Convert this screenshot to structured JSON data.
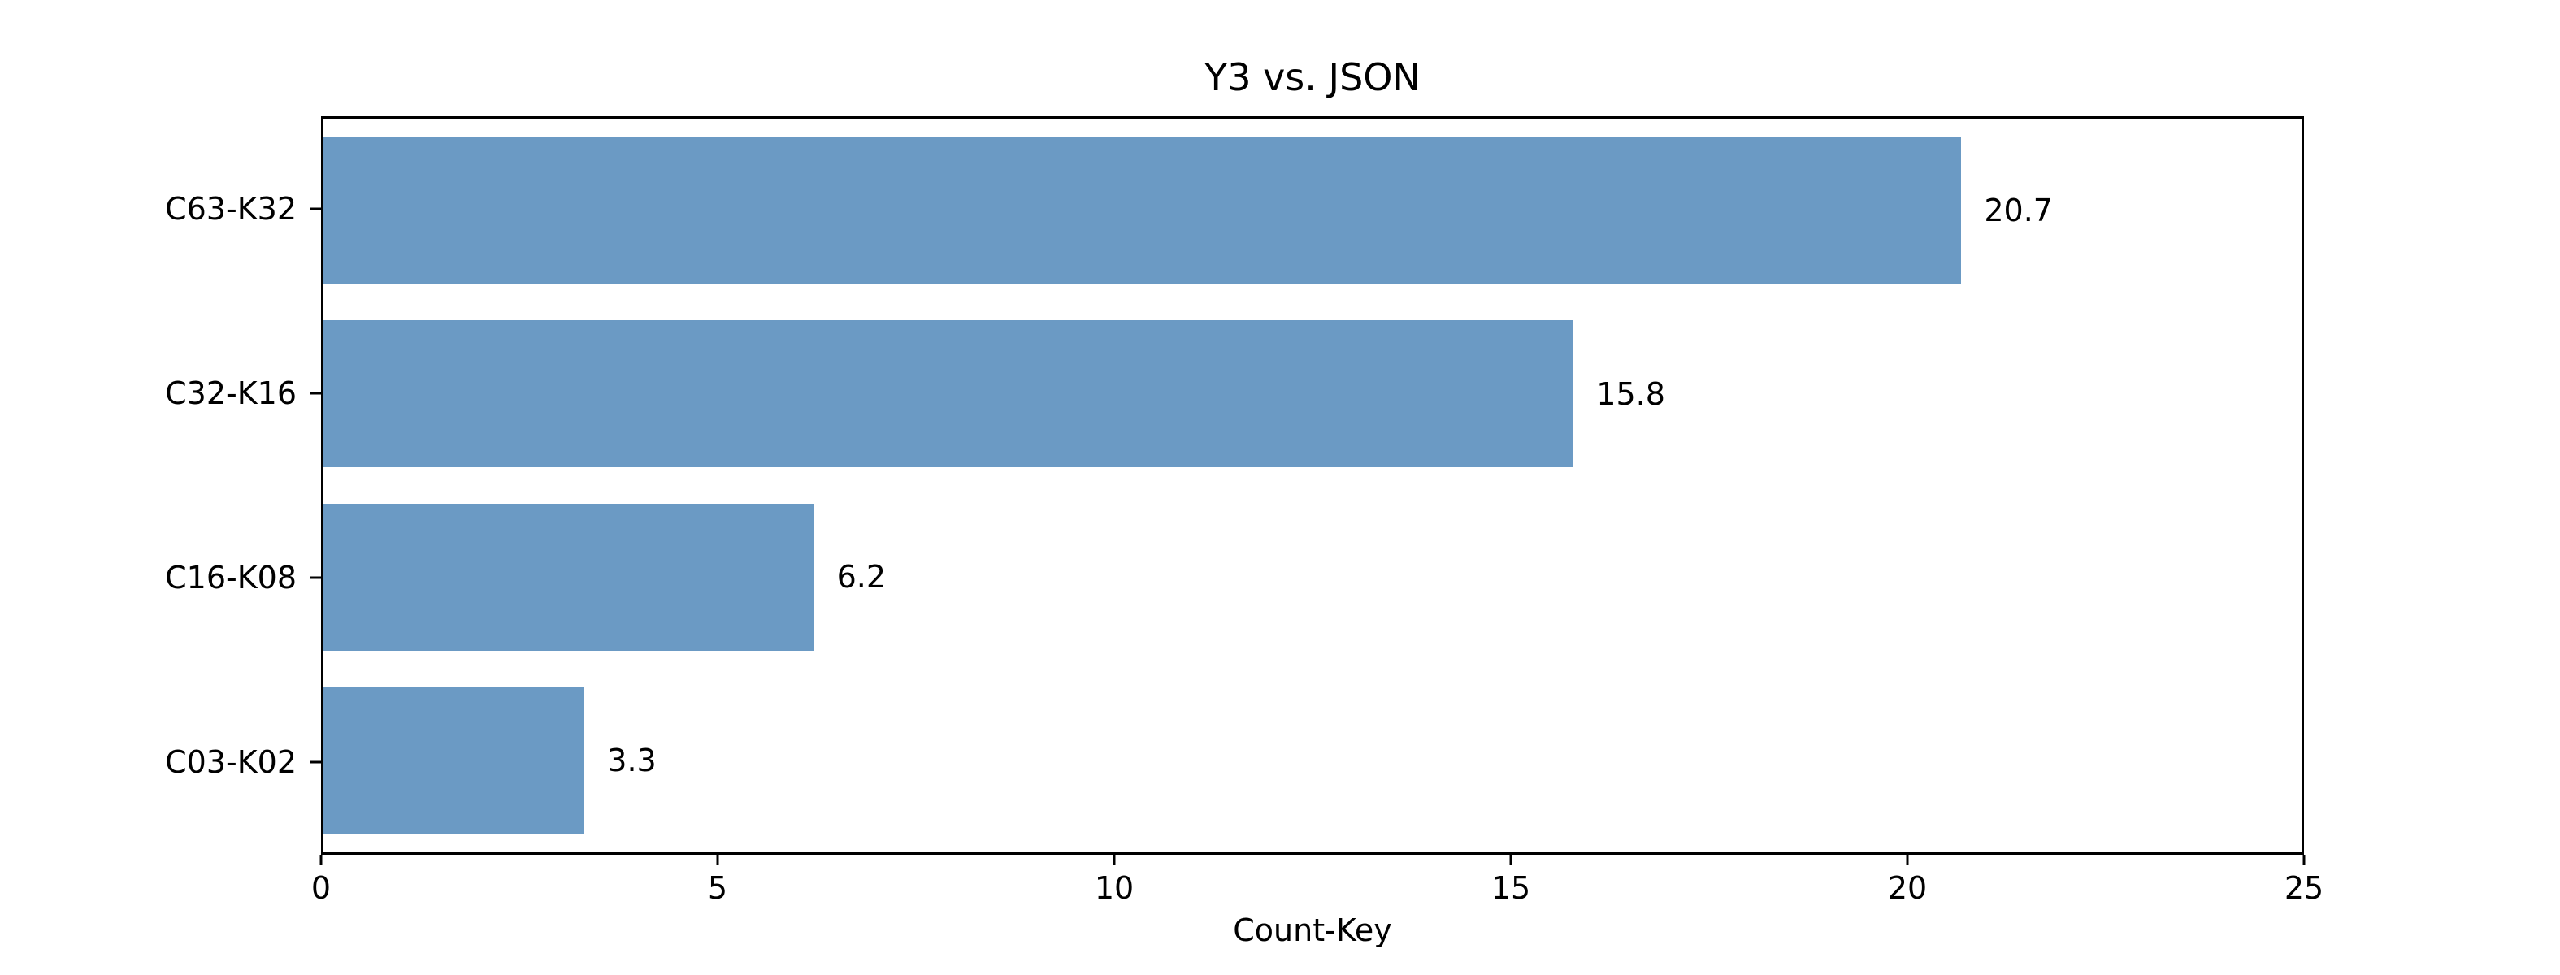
{
  "chart_data": {
    "type": "bar",
    "orientation": "horizontal",
    "title": "Y3 vs. JSON",
    "categories": [
      "C63-K32",
      "C32-K16",
      "C16-K08",
      "C03-K02"
    ],
    "values": [
      20.7,
      15.8,
      6.2,
      3.3
    ],
    "value_labels": [
      "20.7",
      "15.8",
      "6.2",
      "3.3"
    ],
    "xlabel": "Count-Key",
    "ylabel": "",
    "xlim": [
      0,
      25
    ],
    "x_ticks": [
      "0",
      "5",
      "10",
      "15",
      "20",
      "25"
    ],
    "x_tick_values": [
      0,
      5,
      10,
      15,
      20,
      25
    ],
    "grid": false,
    "legend": null,
    "bar_color": "#6b9ac4",
    "axis_color": "#000000",
    "text_color": "#000000",
    "background_color": "#ffffff",
    "bar_fraction_of_slot": 0.8
  }
}
